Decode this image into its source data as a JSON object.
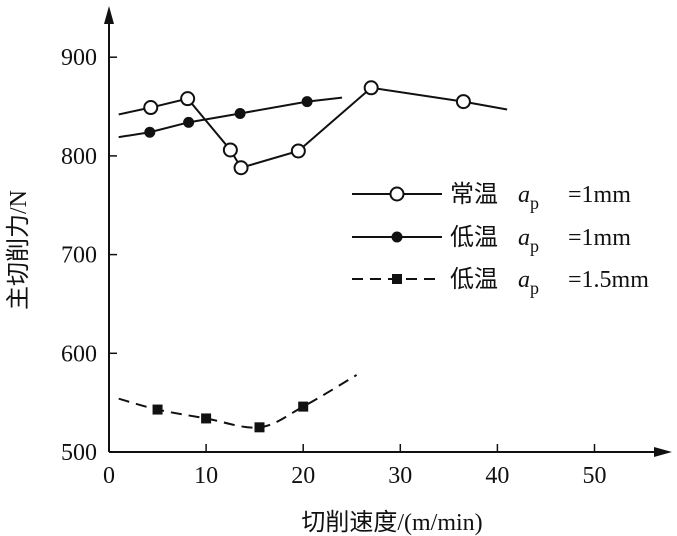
{
  "chart_data": {
    "type": "line",
    "xlabel": "切削速度/(m/min)",
    "ylabel": "主切削力/N",
    "xlim": [
      0,
      57
    ],
    "ylim": [
      500,
      990
    ],
    "xticks": [
      0,
      10,
      20,
      30,
      40,
      50
    ],
    "yticks": [
      500,
      600,
      700,
      800,
      900
    ],
    "grid": false,
    "legend_position": "right",
    "series": [
      {
        "name": "常温",
        "ap_prefix": "a",
        "ap_sub": "p",
        "ap_value": "=1mm",
        "marker": "open-circle",
        "line_style": "solid",
        "curve": {
          "x": [
            1,
            4.3,
            8.1,
            12.5,
            13.6,
            19.5,
            27.0,
            36.5,
            41
          ],
          "y": [
            842,
            849,
            858,
            806,
            788,
            805,
            869,
            855,
            847
          ]
        },
        "points": {
          "x": [
            4.3,
            8.1,
            12.5,
            13.6,
            19.5,
            27.0,
            36.5
          ],
          "y": [
            849,
            858,
            806,
            788,
            805,
            869,
            855
          ]
        }
      },
      {
        "name": "低温",
        "ap_prefix": "a",
        "ap_sub": "p",
        "ap_value": "=1mm",
        "marker": "filled-circle",
        "line_style": "solid",
        "curve": {
          "x": [
            1,
            4.2,
            8.2,
            13.5,
            20.4,
            24
          ],
          "y": [
            819,
            824,
            834,
            843,
            855,
            859
          ]
        },
        "points": {
          "x": [
            4.2,
            8.2,
            13.5,
            20.4
          ],
          "y": [
            824,
            834,
            843,
            855
          ]
        }
      },
      {
        "name": "低温",
        "ap_prefix": "a",
        "ap_sub": "p",
        "ap_value": "=1.5mm",
        "marker": "filled-square",
        "line_style": "dashed",
        "curve": {
          "x": [
            1,
            5.0,
            10.0,
            15.5,
            20.0,
            25.5
          ],
          "y": [
            554,
            543,
            534,
            525,
            546,
            578
          ]
        },
        "points": {
          "x": [
            5.0,
            10.0,
            15.5,
            20.0
          ],
          "y": [
            543,
            534,
            525,
            546
          ]
        }
      }
    ]
  }
}
